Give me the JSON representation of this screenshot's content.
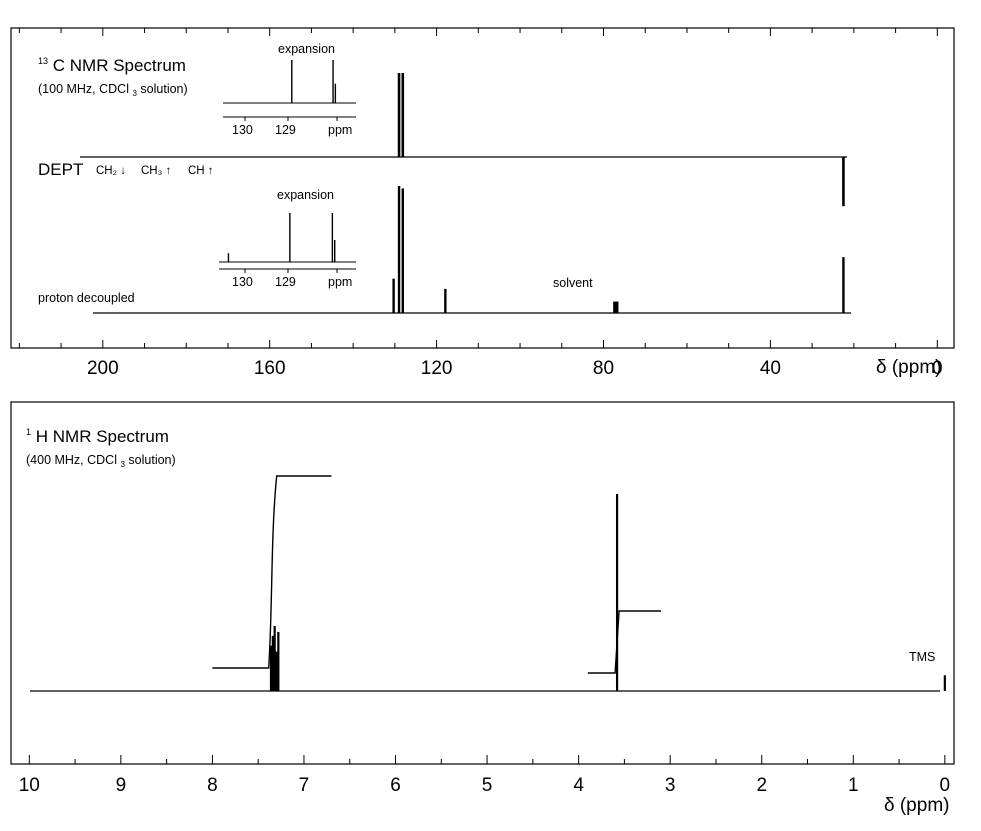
{
  "c13": {
    "title": "C NMR Spectrum",
    "title_sup": "13",
    "conditions_pre": "(100 MHz, CDCl",
    "conditions_sub": "3",
    "conditions_post": " solution)",
    "dept_label": "DEPT",
    "dept_ch2": "CH₂ ↓",
    "dept_ch3": "CH₃ ↑",
    "dept_ch": "CH ↑",
    "proton_decoupled_label": "proton decoupled",
    "solvent_label": "solvent",
    "axis_unit": "δ (ppm)",
    "axis_ticks": [
      200,
      160,
      120,
      80,
      40,
      0
    ],
    "minor_step": 10,
    "xlim": [
      222,
      -4
    ],
    "expansion_dept": {
      "label": "expansion",
      "ticks": [
        "130",
        "129"
      ],
      "unit": "ppm",
      "xlim": [
        130.5,
        127.6
      ],
      "peaks": [
        {
          "ppm": 129.0,
          "h": 1.0
        },
        {
          "ppm": 128.1,
          "h": 1.0
        },
        {
          "ppm": 128.05,
          "h": 0.45
        }
      ]
    },
    "expansion_pd": {
      "label": "expansion",
      "ticks": [
        "130",
        "129"
      ],
      "unit": "ppm",
      "xlim": [
        130.5,
        127.6
      ],
      "peaks": [
        {
          "ppm": 130.3,
          "h": 0.18
        },
        {
          "ppm": 129.0,
          "h": 1.0
        },
        {
          "ppm": 128.1,
          "h": 1.0
        },
        {
          "ppm": 128.05,
          "h": 0.45
        }
      ]
    }
  },
  "h1": {
    "title": "H NMR Spectrum",
    "title_sup": "1",
    "conditions_pre": "(400 MHz, CDCl",
    "conditions_sub": "3",
    "conditions_post": " solution)",
    "tms_label": "TMS",
    "axis_unit": "δ (ppm)",
    "axis_ticks": [
      10,
      9,
      8,
      7,
      6,
      5,
      4,
      3,
      2,
      1,
      0
    ],
    "minor_step": 0.5,
    "xlim": [
      10.2,
      -0.1
    ]
  },
  "chart_data": [
    {
      "type": "line",
      "name": "13C DEPT",
      "x_unit": "ppm",
      "xlim": [
        222,
        -4
      ],
      "peaks": [
        {
          "ppm": 129.0,
          "intensity": 1.0,
          "phase": "up"
        },
        {
          "ppm": 128.1,
          "intensity": 1.0,
          "phase": "up"
        },
        {
          "ppm": 22.5,
          "intensity": 0.65,
          "phase": "down"
        }
      ]
    },
    {
      "type": "line",
      "name": "13C proton decoupled",
      "x_unit": "ppm",
      "xlim": [
        222,
        -4
      ],
      "peaks": [
        {
          "ppm": 130.3,
          "intensity": 0.27
        },
        {
          "ppm": 129.0,
          "intensity": 1.0
        },
        {
          "ppm": 128.1,
          "intensity": 0.98
        },
        {
          "ppm": 117.9,
          "intensity": 0.19
        },
        {
          "ppm": 77.4,
          "intensity": 0.09
        },
        {
          "ppm": 77.0,
          "intensity": 0.09
        },
        {
          "ppm": 76.7,
          "intensity": 0.09
        },
        {
          "ppm": 22.5,
          "intensity": 0.44
        }
      ]
    },
    {
      "type": "line",
      "name": "1H NMR",
      "x_unit": "ppm",
      "xlim": [
        10.2,
        -0.1
      ],
      "peaks": [
        {
          "ppm": 7.36,
          "intensity": 0.23
        },
        {
          "ppm": 7.34,
          "intensity": 0.28
        },
        {
          "ppm": 7.32,
          "intensity": 0.33
        },
        {
          "ppm": 7.3,
          "intensity": 0.2
        },
        {
          "ppm": 7.28,
          "intensity": 0.3
        },
        {
          "ppm": 3.58,
          "intensity": 1.0
        },
        {
          "ppm": 0.0,
          "intensity": 0.08
        }
      ],
      "integrals": [
        {
          "from": 8.0,
          "to": 6.7,
          "height": 0.86
        },
        {
          "from": 3.9,
          "to": 3.1,
          "height": 0.32
        }
      ]
    }
  ]
}
